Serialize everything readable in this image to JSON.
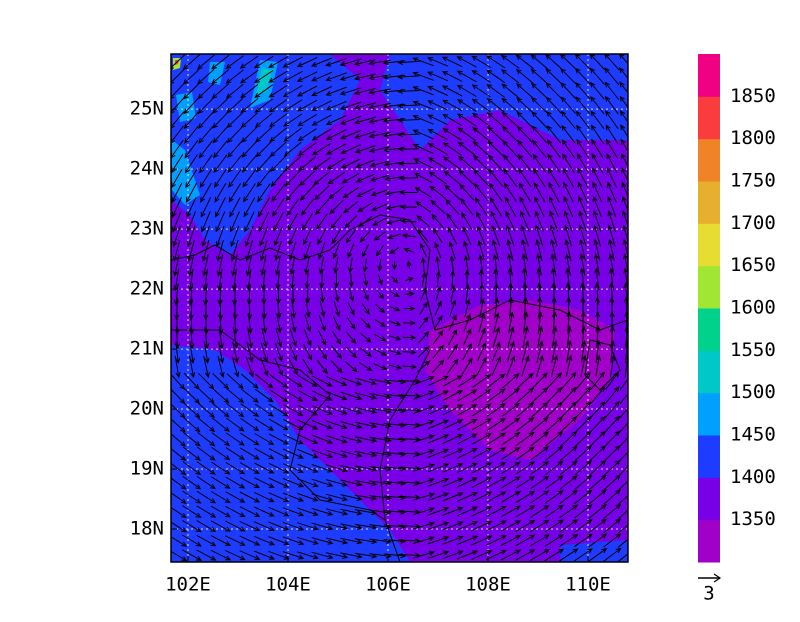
{
  "chart_data": {
    "type": "contour-map",
    "xlim": [
      101.66,
      110.8
    ],
    "ylim": [
      17.45,
      25.92
    ],
    "xticks": [
      {
        "value": 102,
        "label": "102E"
      },
      {
        "value": 104,
        "label": "104E"
      },
      {
        "value": 106,
        "label": "106E"
      },
      {
        "value": 108,
        "label": "108E"
      },
      {
        "value": 110,
        "label": "110E"
      }
    ],
    "yticks": [
      {
        "value": 18,
        "label": "18N"
      },
      {
        "value": 19,
        "label": "19N"
      },
      {
        "value": 20,
        "label": "20N"
      },
      {
        "value": 21,
        "label": "21N"
      },
      {
        "value": 22,
        "label": "22N"
      },
      {
        "value": 23,
        "label": "23N"
      },
      {
        "value": 24,
        "label": "24N"
      },
      {
        "value": 25,
        "label": "25N"
      }
    ],
    "grid": true,
    "colorbar": {
      "lim": [
        1300,
        1900
      ],
      "ticks": [
        1350,
        1400,
        1450,
        1500,
        1550,
        1600,
        1650,
        1700,
        1750,
        1800,
        1850
      ],
      "colors": [
        "#a000c8",
        "#7800e6",
        "#1e3cff",
        "#00a0ff",
        "#00c8c8",
        "#00d28c",
        "#a0e632",
        "#e6dc32",
        "#e6af2d",
        "#f08228",
        "#fa3c3c",
        "#f00082"
      ]
    },
    "vector_reference": "3"
  }
}
